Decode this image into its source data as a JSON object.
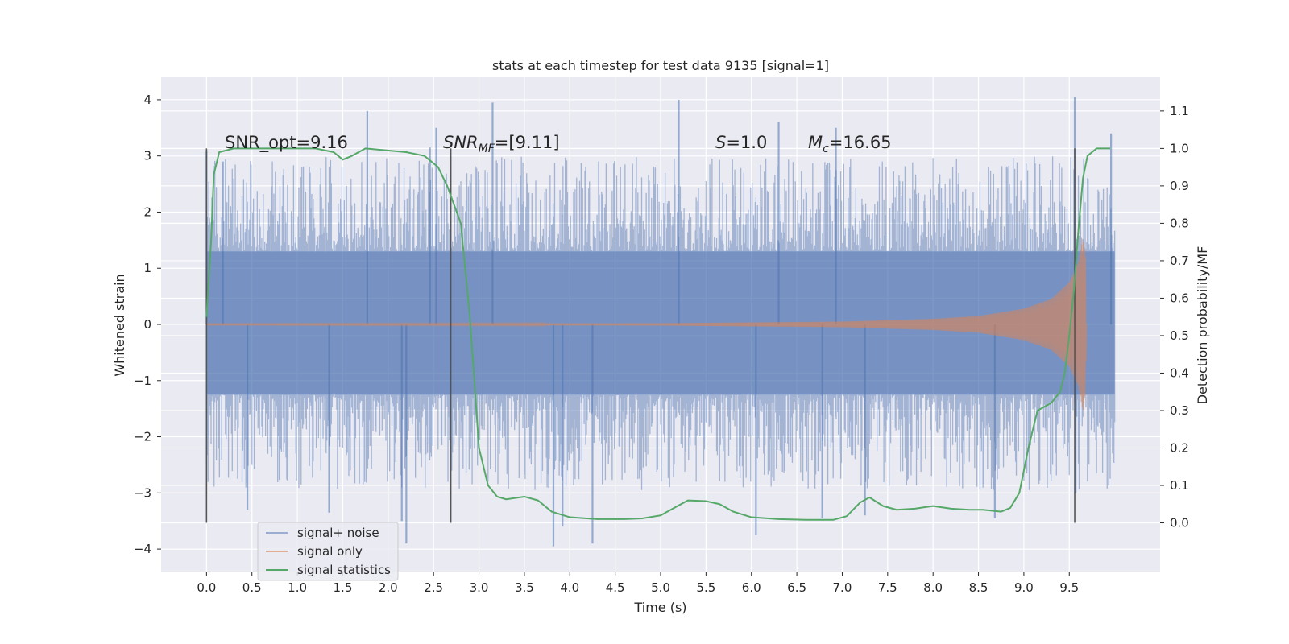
{
  "chart_data": {
    "type": "line",
    "title": "stats at each timestep for test data 9135 [signal=1]",
    "xlabel": "Time (s)",
    "ylabel": "Whitened strain",
    "ylabel_right": "Detection probability/MF",
    "xlim": [
      -0.5,
      10.5
    ],
    "ylim": [
      -4.4,
      4.4
    ],
    "ylim_right": [
      -0.13,
      1.19
    ],
    "x_ticks": [
      "0.0",
      "0.5",
      "1.0",
      "1.5",
      "2.0",
      "2.5",
      "3.0",
      "3.5",
      "4.0",
      "4.5",
      "5.0",
      "5.5",
      "6.0",
      "6.5",
      "7.0",
      "7.5",
      "8.0",
      "8.5",
      "9.0",
      "9.5"
    ],
    "y_ticks": [
      "4",
      "3",
      "2",
      "1",
      "0",
      "−1",
      "−2",
      "−3",
      "−4"
    ],
    "y_right_ticks": [
      "1.1",
      "1.0",
      "0.9",
      "0.8",
      "0.7",
      "0.6",
      "0.5",
      "0.4",
      "0.3",
      "0.2",
      "0.1",
      "0.0"
    ],
    "grid": true,
    "legend_position": "lower-left",
    "background": "#eaeaf2",
    "annotations": {
      "snr_opt": "SNR_opt=9.16",
      "snr_mf_base": "SNR",
      "snr_mf_sub": "MF",
      "snr_mf_value": "=[9.11]",
      "s_symbol": "S",
      "s_value": "=1.0",
      "mc_symbol": "M",
      "mc_sub": "c",
      "mc_value": "=16.65"
    },
    "vlines": [
      0.0,
      2.69,
      9.56
    ],
    "series": [
      {
        "name": "signal+ noise",
        "color": "#4c72b0",
        "axis": "left",
        "kind": "noise",
        "t_range": [
          0.0,
          10.0
        ],
        "envelope_upper": [
          [
            0.0,
            1.3
          ],
          [
            10.0,
            1.3
          ]
        ],
        "envelope_lower": [
          [
            0.0,
            -1.25
          ],
          [
            10.0,
            -1.25
          ]
        ],
        "peaks_upper": [
          [
            0.0,
            3.1
          ],
          [
            0.18,
            2.9
          ],
          [
            1.77,
            3.8
          ],
          [
            2.46,
            3.15
          ],
          [
            2.53,
            3.5
          ],
          [
            3.15,
            3.95
          ],
          [
            5.2,
            4.0
          ],
          [
            6.3,
            3.6
          ],
          [
            6.93,
            3.5
          ],
          [
            9.56,
            4.05
          ],
          [
            9.96,
            3.4
          ]
        ],
        "peaks_lower": [
          [
            0.45,
            -3.3
          ],
          [
            1.35,
            -3.35
          ],
          [
            2.15,
            -3.5
          ],
          [
            2.2,
            -3.9
          ],
          [
            3.82,
            -3.95
          ],
          [
            3.92,
            -3.6
          ],
          [
            4.25,
            -3.9
          ],
          [
            6.05,
            -3.75
          ],
          [
            6.78,
            -3.45
          ],
          [
            7.25,
            -3.4
          ],
          [
            8.68,
            -3.45
          ],
          [
            9.57,
            -3.0
          ]
        ]
      },
      {
        "name": "signal only",
        "color": "#dd8452",
        "axis": "left",
        "kind": "chirp",
        "t_range": [
          0.0,
          9.69
        ],
        "amplitude": [
          [
            0.0,
            0.01
          ],
          [
            3.0,
            0.015
          ],
          [
            5.0,
            0.02
          ],
          [
            7.0,
            0.05
          ],
          [
            8.0,
            0.1
          ],
          [
            8.5,
            0.15
          ],
          [
            9.0,
            0.28
          ],
          [
            9.3,
            0.45
          ],
          [
            9.5,
            0.75
          ],
          [
            9.6,
            1.1
          ],
          [
            9.65,
            1.55
          ],
          [
            9.68,
            1.2
          ],
          [
            9.69,
            0.0
          ]
        ]
      },
      {
        "name": "signal statistics",
        "color": "#55a868",
        "axis": "right",
        "kind": "line",
        "points": [
          [
            0.0,
            0.55
          ],
          [
            0.05,
            0.75
          ],
          [
            0.08,
            0.93
          ],
          [
            0.14,
            0.99
          ],
          [
            0.3,
            1.0
          ],
          [
            0.8,
            1.0
          ],
          [
            1.2,
            1.0
          ],
          [
            1.4,
            0.99
          ],
          [
            1.5,
            0.97
          ],
          [
            1.6,
            0.98
          ],
          [
            1.75,
            1.0
          ],
          [
            2.2,
            0.99
          ],
          [
            2.4,
            0.98
          ],
          [
            2.55,
            0.95
          ],
          [
            2.65,
            0.9
          ],
          [
            2.8,
            0.8
          ],
          [
            2.9,
            0.55
          ],
          [
            3.0,
            0.2
          ],
          [
            3.1,
            0.1
          ],
          [
            3.2,
            0.07
          ],
          [
            3.3,
            0.063
          ],
          [
            3.5,
            0.07
          ],
          [
            3.65,
            0.06
          ],
          [
            3.8,
            0.03
          ],
          [
            4.0,
            0.015
          ],
          [
            4.3,
            0.01
          ],
          [
            4.6,
            0.01
          ],
          [
            4.8,
            0.012
          ],
          [
            5.0,
            0.02
          ],
          [
            5.15,
            0.04
          ],
          [
            5.3,
            0.06
          ],
          [
            5.5,
            0.058
          ],
          [
            5.65,
            0.05
          ],
          [
            5.8,
            0.03
          ],
          [
            6.0,
            0.015
          ],
          [
            6.3,
            0.01
          ],
          [
            6.6,
            0.008
          ],
          [
            6.9,
            0.008
          ],
          [
            7.05,
            0.018
          ],
          [
            7.2,
            0.055
          ],
          [
            7.3,
            0.068
          ],
          [
            7.45,
            0.045
          ],
          [
            7.6,
            0.035
          ],
          [
            7.8,
            0.038
          ],
          [
            8.0,
            0.045
          ],
          [
            8.2,
            0.038
          ],
          [
            8.4,
            0.035
          ],
          [
            8.55,
            0.035
          ],
          [
            8.75,
            0.03
          ],
          [
            8.85,
            0.04
          ],
          [
            8.95,
            0.08
          ],
          [
            9.05,
            0.2
          ],
          [
            9.15,
            0.3
          ],
          [
            9.3,
            0.32
          ],
          [
            9.4,
            0.35
          ],
          [
            9.45,
            0.4
          ],
          [
            9.5,
            0.5
          ],
          [
            9.55,
            0.62
          ],
          [
            9.6,
            0.78
          ],
          [
            9.65,
            0.92
          ],
          [
            9.7,
            0.98
          ],
          [
            9.8,
            1.0
          ],
          [
            9.95,
            1.0
          ]
        ]
      }
    ]
  }
}
